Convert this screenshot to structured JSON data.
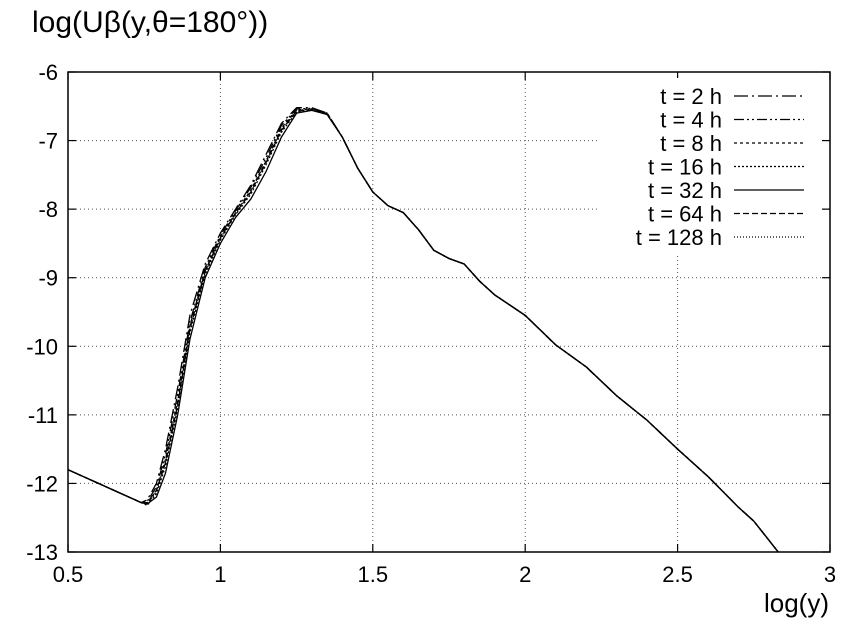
{
  "chart_data": {
    "type": "line",
    "title": "",
    "ylabel": "log(Uβ(y,θ=180°))",
    "xlabel": "log(y)",
    "xlim": [
      0.5,
      3
    ],
    "ylim": [
      -13,
      -6
    ],
    "xticks": [
      "0.5",
      "1",
      "1.5",
      "2",
      "2.5",
      "3"
    ],
    "yticks": [
      "-6",
      "-7",
      "-8",
      "-9",
      "-10",
      "-11",
      "-12",
      "-13"
    ],
    "grid": true,
    "legend_position": "top-right",
    "series": [
      {
        "name": "t = 2 h",
        "dash": "14,4,2,4",
        "x": [
          0.5,
          0.6,
          0.7,
          0.74,
          0.76,
          0.79,
          0.82,
          0.86,
          0.9,
          0.95,
          1.0,
          1.05,
          1.1,
          1.15,
          1.2,
          1.25,
          1.3,
          1.35,
          1.4,
          1.45,
          1.5,
          1.55,
          1.6,
          1.65,
          1.7,
          1.75,
          1.8,
          1.85,
          1.9,
          2.0,
          2.1,
          2.2,
          2.3,
          2.4,
          2.5,
          2.6,
          2.7,
          2.75,
          2.83
        ],
        "y": [
          -11.8,
          -12.0,
          -12.2,
          -12.28,
          -12.24,
          -12.0,
          -11.5,
          -10.6,
          -9.55,
          -8.8,
          -8.35,
          -8.0,
          -7.65,
          -7.2,
          -6.75,
          -6.52,
          -6.52,
          -6.6,
          -6.95,
          -7.4,
          -7.75,
          -7.95,
          -8.05,
          -8.3,
          -8.6,
          -8.72,
          -8.8,
          -9.05,
          -9.25,
          -9.55,
          -9.98,
          -10.3,
          -10.72,
          -11.08,
          -11.5,
          -11.9,
          -12.35,
          -12.55,
          -13.0
        ]
      },
      {
        "name": "t = 4 h",
        "dash": "10,3,2,3,2,3",
        "x": [
          0.5,
          0.6,
          0.7,
          0.74,
          0.76,
          0.79,
          0.82,
          0.86,
          0.9,
          0.95,
          1.0,
          1.05,
          1.1,
          1.15,
          1.2,
          1.25,
          1.3,
          1.35,
          1.4,
          1.45,
          1.5,
          1.55,
          1.6,
          1.65,
          1.7,
          1.75,
          1.8,
          1.85,
          1.9,
          2.0,
          2.1,
          2.2,
          2.3,
          2.4,
          2.5,
          2.6,
          2.7,
          2.75,
          2.83
        ],
        "y": [
          -11.8,
          -12.0,
          -12.2,
          -12.28,
          -12.26,
          -12.05,
          -11.58,
          -10.7,
          -9.65,
          -8.85,
          -8.38,
          -8.02,
          -7.68,
          -7.25,
          -6.78,
          -6.54,
          -6.53,
          -6.6,
          -6.95,
          -7.4,
          -7.75,
          -7.95,
          -8.05,
          -8.3,
          -8.6,
          -8.72,
          -8.8,
          -9.05,
          -9.25,
          -9.55,
          -9.98,
          -10.3,
          -10.72,
          -11.08,
          -11.5,
          -11.9,
          -12.35,
          -12.55,
          -13.0
        ]
      },
      {
        "name": "t = 8 h",
        "dash": "3,3",
        "x": [
          0.5,
          0.6,
          0.7,
          0.74,
          0.76,
          0.79,
          0.82,
          0.86,
          0.9,
          0.95,
          1.0,
          1.05,
          1.1,
          1.15,
          1.2,
          1.25,
          1.3,
          1.35,
          1.4,
          1.45,
          1.5,
          1.55,
          1.6,
          1.65,
          1.7,
          1.75,
          1.8,
          1.85,
          1.9,
          2.0,
          2.1,
          2.2,
          2.3,
          2.4,
          2.5,
          2.6,
          2.7,
          2.75,
          2.83
        ],
        "y": [
          -11.8,
          -12.0,
          -12.2,
          -12.28,
          -12.3,
          -12.1,
          -11.65,
          -10.8,
          -9.7,
          -8.9,
          -8.4,
          -8.05,
          -7.72,
          -7.3,
          -6.82,
          -6.55,
          -6.54,
          -6.6,
          -6.95,
          -7.4,
          -7.75,
          -7.95,
          -8.05,
          -8.3,
          -8.6,
          -8.72,
          -8.8,
          -9.05,
          -9.25,
          -9.55,
          -9.98,
          -10.3,
          -10.72,
          -11.08,
          -11.5,
          -11.9,
          -12.35,
          -12.55,
          -13.0
        ]
      },
      {
        "name": "t = 16 h",
        "dash": "2,2",
        "x": [
          0.5,
          0.6,
          0.7,
          0.74,
          0.76,
          0.79,
          0.82,
          0.86,
          0.9,
          0.95,
          1.0,
          1.05,
          1.1,
          1.15,
          1.2,
          1.25,
          1.3,
          1.35,
          1.4,
          1.45,
          1.5,
          1.55,
          1.6,
          1.65,
          1.7,
          1.75,
          1.8,
          1.85,
          1.9,
          2.0,
          2.1,
          2.2,
          2.3,
          2.4,
          2.5,
          2.6,
          2.7,
          2.75,
          2.83
        ],
        "y": [
          -11.8,
          -12.0,
          -12.2,
          -12.28,
          -12.32,
          -12.15,
          -11.75,
          -10.9,
          -9.8,
          -8.95,
          -8.45,
          -8.08,
          -7.78,
          -7.35,
          -6.88,
          -6.58,
          -6.55,
          -6.62,
          -6.95,
          -7.4,
          -7.75,
          -7.95,
          -8.05,
          -8.3,
          -8.6,
          -8.72,
          -8.8,
          -9.05,
          -9.25,
          -9.55,
          -9.98,
          -10.3,
          -10.72,
          -11.08,
          -11.5,
          -11.9,
          -12.35,
          -12.55,
          -13.0
        ]
      },
      {
        "name": "t = 32 h",
        "dash": "",
        "x": [
          0.5,
          0.6,
          0.7,
          0.74,
          0.76,
          0.79,
          0.82,
          0.86,
          0.9,
          0.95,
          1.0,
          1.05,
          1.1,
          1.15,
          1.2,
          1.25,
          1.3,
          1.35,
          1.4,
          1.45,
          1.5,
          1.55,
          1.6,
          1.65,
          1.7,
          1.75,
          1.8,
          1.85,
          1.9,
          2.0,
          2.1,
          2.2,
          2.3,
          2.4,
          2.5,
          2.6,
          2.7,
          2.75,
          2.83
        ],
        "y": [
          -11.8,
          -12.0,
          -12.2,
          -12.28,
          -12.3,
          -12.2,
          -11.85,
          -11.0,
          -9.9,
          -9.0,
          -8.5,
          -8.12,
          -7.85,
          -7.45,
          -6.95,
          -6.6,
          -6.56,
          -6.62,
          -6.95,
          -7.4,
          -7.75,
          -7.95,
          -8.05,
          -8.3,
          -8.6,
          -8.72,
          -8.8,
          -9.05,
          -9.25,
          -9.55,
          -9.98,
          -10.3,
          -10.72,
          -11.08,
          -11.5,
          -11.9,
          -12.35,
          -12.55,
          -13.0
        ]
      },
      {
        "name": "t = 64 h",
        "dash": "6,3",
        "x": [
          0.5,
          0.6,
          0.7,
          0.74,
          0.76,
          0.79,
          0.82,
          0.86,
          0.9,
          0.95,
          1.0,
          1.05,
          1.1,
          1.15,
          1.2,
          1.25,
          1.3,
          1.35,
          1.4,
          1.45,
          1.5,
          1.55,
          1.6,
          1.65,
          1.7,
          1.75,
          1.8,
          1.85,
          1.9,
          2.0,
          2.1,
          2.2,
          2.3,
          2.4,
          2.5,
          2.6,
          2.7,
          2.75,
          2.83
        ],
        "y": [
          -11.8,
          -12.0,
          -12.2,
          -12.28,
          -12.28,
          -12.1,
          -11.7,
          -10.85,
          -9.75,
          -8.9,
          -8.42,
          -8.06,
          -7.75,
          -7.32,
          -6.85,
          -6.57,
          -6.55,
          -6.61,
          -6.95,
          -7.4,
          -7.75,
          -7.95,
          -8.05,
          -8.3,
          -8.6,
          -8.72,
          -8.8,
          -9.05,
          -9.25,
          -9.55,
          -9.98,
          -10.3,
          -10.72,
          -11.08,
          -11.5,
          -11.9,
          -12.35,
          -12.55,
          -13.0
        ]
      },
      {
        "name": "t = 128 h",
        "dash": "1,2",
        "x": [
          0.5,
          0.6,
          0.7,
          0.74,
          0.76,
          0.79,
          0.82,
          0.86,
          0.9,
          0.95,
          1.0,
          1.05,
          1.1,
          1.15,
          1.2,
          1.25,
          1.3,
          1.35,
          1.4,
          1.45,
          1.5,
          1.55,
          1.6,
          1.65,
          1.7,
          1.75,
          1.8,
          1.85,
          1.9,
          2.0,
          2.1,
          2.2,
          2.3,
          2.4,
          2.5,
          2.6,
          2.7,
          2.75,
          2.83
        ],
        "y": [
          -11.8,
          -12.0,
          -12.2,
          -12.28,
          -12.3,
          -12.12,
          -11.68,
          -10.82,
          -9.72,
          -8.92,
          -8.43,
          -8.07,
          -7.74,
          -7.3,
          -6.83,
          -6.56,
          -6.54,
          -6.61,
          -6.95,
          -7.4,
          -7.75,
          -7.95,
          -8.05,
          -8.3,
          -8.6,
          -8.72,
          -8.8,
          -9.05,
          -9.25,
          -9.55,
          -9.98,
          -10.3,
          -10.72,
          -11.08,
          -11.5,
          -11.9,
          -12.35,
          -12.55,
          -13.0
        ]
      }
    ]
  }
}
